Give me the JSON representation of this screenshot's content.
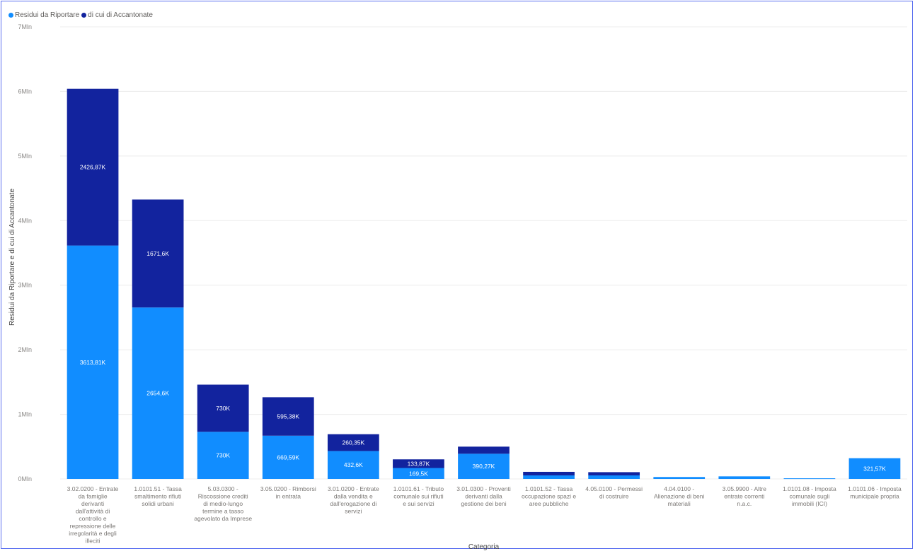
{
  "legend": {
    "items": [
      {
        "label": "Residui da Riportare",
        "color": "#118dff"
      },
      {
        "label": "di cui di Accantonate",
        "color": "#12239e"
      }
    ]
  },
  "chart_data": {
    "type": "bar",
    "stacked": true,
    "xlabel": "Categoria",
    "ylabel": "Residui da Riportare e di cui di Accantonate",
    "ylim": [
      0,
      7000000
    ],
    "yticks": [
      {
        "value": 0,
        "label": "0Mln"
      },
      {
        "value": 1000000,
        "label": "1Mln"
      },
      {
        "value": 2000000,
        "label": "2Mln"
      },
      {
        "value": 3000000,
        "label": "3Mln"
      },
      {
        "value": 4000000,
        "label": "4Mln"
      },
      {
        "value": 5000000,
        "label": "5Mln"
      },
      {
        "value": 6000000,
        "label": "6Mln"
      },
      {
        "value": 7000000,
        "label": "7Mln"
      }
    ],
    "grid": true,
    "legend_position": "top-left",
    "categories": [
      "3.02.0200 - Entrate da famiglie derivanti dall'attività di controllo e repressione delle irregolarità e degli illeciti",
      "1.0101.51 - Tassa smaltimento rifiuti solidi urbani",
      "5.03.0300 - Riscossione crediti di medio-lungo termine a tasso agevolato da Imprese",
      "3.05.0200 - Rimborsi in entrata",
      "3.01.0200 - Entrate dalla vendita e dall'erogazione di servizi",
      "1.0101.61 - Tributo comunale sui rifiuti e sui servizi",
      "3.01.0300 - Proventi derivanti dalla gestione dei beni",
      "1.0101.52 - Tassa occupazione spazi e aree pubbliche",
      "4.05.0100 - Permessi di costruire",
      "4.04.0100 - Alienazione di beni materiali",
      "3.05.9900 - Altre entrate correnti n.a.c.",
      "1.0101.08 - Imposta comunale sugli immobili (ICI)",
      "1.0101.06 - Imposta municipale propria"
    ],
    "series": [
      {
        "name": "Residui da Riportare",
        "color": "#118dff",
        "values": [
          3613810,
          2654600,
          730000,
          669590,
          432600,
          169500,
          390270,
          55000,
          55000,
          30000,
          40000,
          10000,
          321570
        ],
        "labels": [
          "3613,81K",
          "2654,6K",
          "730K",
          "669,59K",
          "432,6K",
          "169,5K",
          "390,27K",
          "",
          "",
          "",
          "",
          "",
          "321,57K"
        ]
      },
      {
        "name": "di cui di Accantonate",
        "color": "#12239e",
        "values": [
          2426870,
          1671600,
          730000,
          595380,
          260350,
          133870,
          110000,
          55000,
          50000,
          0,
          0,
          0,
          0
        ],
        "labels": [
          "2426,87K",
          "1671,6K",
          "730K",
          "595,38K",
          "260,35K",
          "133,87K",
          "",
          "",
          "",
          "",
          "",
          "",
          ""
        ]
      }
    ]
  }
}
